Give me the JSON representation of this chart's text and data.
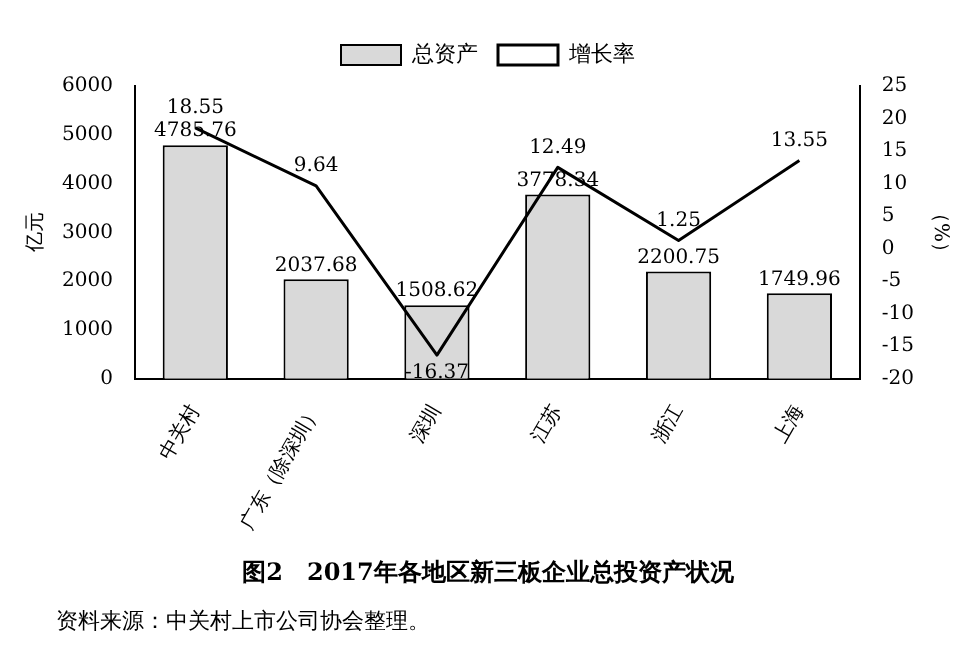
{
  "chart_data": {
    "type": "bar",
    "title": "图2　2017年各地区新三板企业总投资产状况",
    "annotations": [
      "资料来源：中关村上市公司协会整理。"
    ],
    "ylabel": "亿元",
    "y2label": "（%）",
    "categories": [
      "中关村",
      "广东（除深圳）",
      "深圳",
      "江苏",
      "浙江",
      "上海"
    ],
    "series": [
      {
        "name": "总资产",
        "color": "#d9d9d9",
        "values": [
          4785.76,
          2037.68,
          1508.62,
          3778.34,
          2200.75,
          1749.96
        ]
      },
      {
        "name": "增长率",
        "type": "line",
        "axis": "y2",
        "color": "#000000",
        "values": [
          18.55,
          9.64,
          -16.37,
          12.49,
          1.25,
          13.55
        ]
      }
    ],
    "ylim": [
      0,
      6000
    ],
    "yticks": [
      0,
      1000,
      2000,
      3000,
      4000,
      5000,
      6000
    ],
    "y2lim": [
      -20,
      25
    ],
    "y2ticks": [
      -20,
      -15,
      -10,
      -5,
      0,
      5,
      10,
      15,
      20,
      25
    ],
    "legend": "top",
    "grid": false,
    "data_labels": true,
    "marker": "none"
  }
}
